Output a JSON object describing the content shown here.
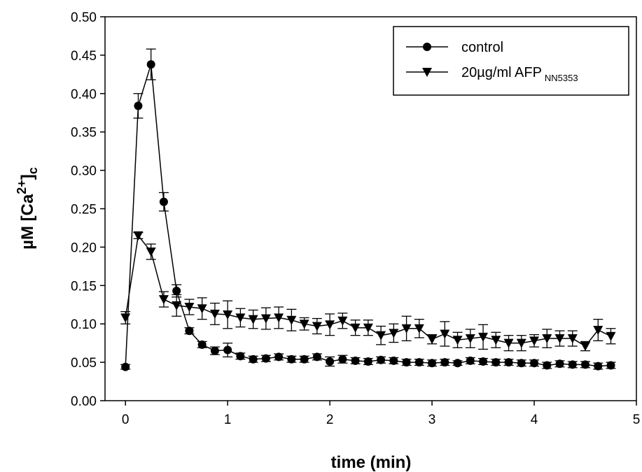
{
  "chart_data": {
    "type": "line",
    "xlabel": "time (min)",
    "ylabel": {
      "prefix": "µM [Ca",
      "sup": "2+",
      "close": "]",
      "sub": "c"
    },
    "xlim": [
      -0.2,
      5
    ],
    "ylim": [
      0,
      0.5
    ],
    "x_ticks": [
      0,
      1,
      2,
      3,
      4,
      5
    ],
    "y_ticks": [
      0.0,
      0.05,
      0.1,
      0.15,
      0.2,
      0.25,
      0.3,
      0.35,
      0.4,
      0.45,
      0.5
    ],
    "grid": false,
    "legend_position": "top-right",
    "series": [
      {
        "name": "control",
        "legend_sub": "",
        "marker": "circle",
        "x": [
          0,
          0.125,
          0.25,
          0.375,
          0.5,
          0.625,
          0.75,
          0.875,
          1.0,
          1.125,
          1.25,
          1.375,
          1.5,
          1.625,
          1.75,
          1.875,
          2.0,
          2.125,
          2.25,
          2.375,
          2.5,
          2.625,
          2.75,
          2.875,
          3.0,
          3.125,
          3.25,
          3.375,
          3.5,
          3.625,
          3.75,
          3.875,
          4.0,
          4.125,
          4.25,
          4.375,
          4.5,
          4.625,
          4.75
        ],
        "y": [
          0.044,
          0.384,
          0.438,
          0.259,
          0.143,
          0.091,
          0.073,
          0.065,
          0.066,
          0.058,
          0.054,
          0.055,
          0.057,
          0.054,
          0.054,
          0.057,
          0.051,
          0.054,
          0.052,
          0.051,
          0.053,
          0.052,
          0.05,
          0.05,
          0.049,
          0.05,
          0.049,
          0.052,
          0.051,
          0.05,
          0.05,
          0.049,
          0.049,
          0.046,
          0.048,
          0.047,
          0.047,
          0.045,
          0.046
        ],
        "err": [
          0.003,
          0.016,
          0.02,
          0.012,
          0.008,
          0.004,
          0.004,
          0.005,
          0.009,
          0.004,
          0.004,
          0.004,
          0.004,
          0.004,
          0.004,
          0.004,
          0.006,
          0.005,
          0.004,
          0.004,
          0.004,
          0.004,
          0.004,
          0.004,
          0.004,
          0.004,
          0.003,
          0.004,
          0.004,
          0.004,
          0.004,
          0.004,
          0.004,
          0.004,
          0.004,
          0.004,
          0.004,
          0.004,
          0.004
        ]
      },
      {
        "name": "20µg/ml AFP",
        "legend_sub": "NN5353",
        "marker": "triangle-down",
        "x": [
          0,
          0.125,
          0.25,
          0.375,
          0.5,
          0.625,
          0.75,
          0.875,
          1.0,
          1.125,
          1.25,
          1.375,
          1.5,
          1.625,
          1.75,
          1.875,
          2.0,
          2.125,
          2.25,
          2.375,
          2.5,
          2.625,
          2.75,
          2.875,
          3.0,
          3.125,
          3.25,
          3.375,
          3.5,
          3.625,
          3.75,
          3.875,
          4.0,
          4.125,
          4.25,
          4.375,
          4.5,
          4.625,
          4.75
        ],
        "y": [
          0.108,
          0.215,
          0.194,
          0.132,
          0.124,
          0.122,
          0.12,
          0.113,
          0.112,
          0.108,
          0.106,
          0.107,
          0.108,
          0.105,
          0.1,
          0.097,
          0.099,
          0.104,
          0.095,
          0.095,
          0.085,
          0.088,
          0.094,
          0.094,
          0.08,
          0.087,
          0.079,
          0.081,
          0.083,
          0.079,
          0.075,
          0.075,
          0.078,
          0.081,
          0.081,
          0.081,
          0.071,
          0.092,
          0.084
        ],
        "err": [
          0.008,
          0.004,
          0.01,
          0.01,
          0.014,
          0.01,
          0.014,
          0.014,
          0.018,
          0.012,
          0.012,
          0.014,
          0.014,
          0.014,
          0.008,
          0.01,
          0.014,
          0.01,
          0.01,
          0.01,
          0.012,
          0.012,
          0.016,
          0.012,
          0.006,
          0.016,
          0.01,
          0.012,
          0.016,
          0.01,
          0.01,
          0.01,
          0.008,
          0.012,
          0.01,
          0.01,
          0.006,
          0.014,
          0.01
        ]
      }
    ]
  }
}
